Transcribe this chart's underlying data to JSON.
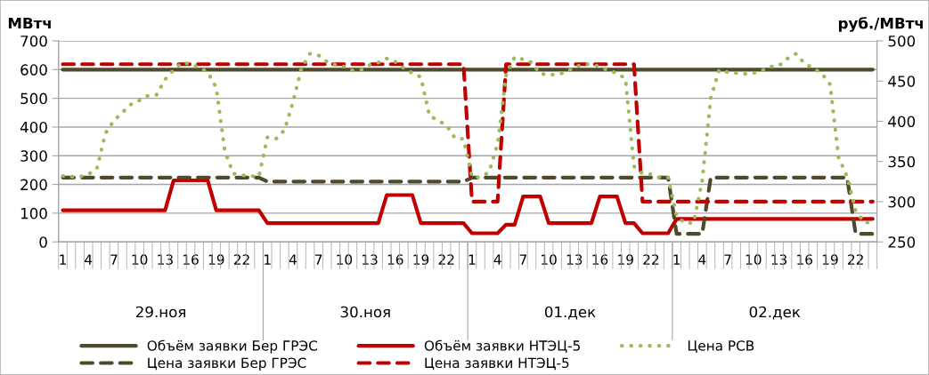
{
  "chart_data": {
    "type": "line",
    "ylabel": "МВтч",
    "y2label": "руб./МВтч",
    "categories": [
      "1",
      null,
      null,
      "4",
      null,
      null,
      "7",
      null,
      null,
      "10",
      null,
      null,
      "13",
      null,
      null,
      "16",
      null,
      null,
      "19",
      null,
      null,
      "22",
      null,
      null,
      "1",
      null,
      null,
      "4",
      null,
      null,
      "7",
      null,
      null,
      "10",
      null,
      null,
      "13",
      null,
      null,
      "16",
      null,
      null,
      "19",
      null,
      null,
      "22",
      null,
      null,
      "1",
      null,
      null,
      "4",
      null,
      null,
      "7",
      null,
      null,
      "10",
      null,
      null,
      "13",
      null,
      null,
      "16",
      null,
      null,
      "19",
      null,
      null,
      "22",
      null,
      null,
      "1",
      null,
      null,
      "4",
      null,
      null,
      "7",
      null,
      null,
      "10",
      null,
      null,
      "13",
      null,
      null,
      "16",
      null,
      null,
      "19",
      null,
      null,
      "22",
      null,
      null
    ],
    "annotations": [
      "29.ноя",
      "30.ноя",
      "01.дек",
      "02.дек"
    ],
    "ylim": [
      0,
      700
    ],
    "yticks": [
      0,
      100,
      200,
      300,
      400,
      500,
      600,
      700
    ],
    "y2lim": [
      250,
      500
    ],
    "y2ticks": [
      250,
      300,
      350,
      400,
      450,
      500
    ],
    "grid": "y",
    "legend": "bottom",
    "marker": "none",
    "series": [
      {
        "name": "Объём заявки Бер ГРЭС",
        "color": "#4f4a2c",
        "line_style": "solid",
        "values": [
          600,
          600,
          600,
          600,
          600,
          600,
          600,
          600,
          600,
          600,
          600,
          600,
          600,
          600,
          600,
          600,
          600,
          600,
          600,
          600,
          600,
          600,
          600,
          600,
          600,
          600,
          600,
          600,
          600,
          600,
          600,
          600,
          600,
          600,
          600,
          600,
          600,
          600,
          600,
          600,
          600,
          600,
          600,
          600,
          600,
          600,
          600,
          600,
          600,
          600,
          600,
          600,
          600,
          600,
          600,
          600,
          600,
          600,
          600,
          600,
          600,
          600,
          600,
          600,
          600,
          600,
          600,
          600,
          600,
          600,
          600,
          600,
          600,
          600,
          600,
          600,
          600,
          600,
          600,
          600,
          600,
          600,
          600,
          600,
          600,
          600,
          600,
          600,
          600,
          600,
          600,
          600,
          600,
          600,
          600,
          600
        ]
      },
      {
        "name": "Цена заявки Бер ГРЭС",
        "color": "#4f4a2c",
        "line_style": "dashed",
        "axis": "y2",
        "values": [
          330,
          330,
          330,
          330,
          330,
          330,
          330,
          330,
          330,
          330,
          330,
          330,
          330,
          330,
          330,
          330,
          330,
          330,
          330,
          330,
          330,
          330,
          330,
          330,
          325,
          325,
          325,
          325,
          325,
          325,
          325,
          325,
          325,
          325,
          325,
          325,
          325,
          325,
          325,
          325,
          325,
          325,
          325,
          325,
          325,
          325,
          325,
          325,
          330,
          330,
          330,
          330,
          330,
          330,
          330,
          330,
          330,
          330,
          330,
          330,
          330,
          330,
          330,
          330,
          330,
          330,
          330,
          330,
          330,
          330,
          330,
          330,
          260,
          260,
          260,
          260,
          330,
          330,
          330,
          330,
          330,
          330,
          330,
          330,
          330,
          330,
          330,
          330,
          330,
          330,
          330,
          330,
          330,
          260,
          260,
          260
        ]
      },
      {
        "name": "Объём заявки НТЭЦ-5",
        "color": "#c00000",
        "line_style": "solid",
        "values": [
          110,
          110,
          110,
          110,
          110,
          110,
          110,
          110,
          110,
          110,
          110,
          110,
          110,
          214,
          214,
          214,
          214,
          214,
          110,
          110,
          110,
          110,
          110,
          110,
          65,
          65,
          65,
          65,
          65,
          65,
          65,
          65,
          65,
          65,
          65,
          65,
          65,
          65,
          163,
          163,
          163,
          163,
          65,
          65,
          65,
          65,
          65,
          65,
          30,
          30,
          30,
          30,
          60,
          60,
          158,
          158,
          158,
          65,
          65,
          65,
          65,
          65,
          65,
          158,
          158,
          158,
          65,
          65,
          30,
          30,
          30,
          30,
          80,
          80,
          80,
          80,
          80,
          80,
          80,
          80,
          80,
          80,
          80,
          80,
          80,
          80,
          80,
          80,
          80,
          80,
          80,
          80,
          80,
          80,
          80,
          80
        ]
      },
      {
        "name": "Цена заявки НТЭЦ-5",
        "color": "#c00000",
        "line_style": "dashed",
        "axis": "y2",
        "values": [
          471,
          471,
          471,
          471,
          471,
          471,
          471,
          471,
          471,
          471,
          471,
          471,
          471,
          471,
          471,
          471,
          471,
          471,
          471,
          471,
          471,
          471,
          471,
          471,
          471,
          471,
          471,
          471,
          471,
          471,
          471,
          471,
          471,
          471,
          471,
          471,
          471,
          471,
          471,
          471,
          471,
          471,
          471,
          471,
          471,
          471,
          471,
          471,
          300,
          300,
          300,
          300,
          471,
          471,
          471,
          471,
          471,
          471,
          471,
          471,
          471,
          471,
          471,
          471,
          471,
          471,
          471,
          471,
          300,
          300,
          300,
          300,
          300,
          300,
          300,
          300,
          300,
          300,
          300,
          300,
          300,
          300,
          300,
          300,
          300,
          300,
          300,
          300,
          300,
          300,
          300,
          300,
          300,
          300,
          300,
          300
        ]
      },
      {
        "name": "Цена РСВ",
        "color": "#9bbb59",
        "line_style": "dotted",
        "axis": "y2",
        "values": [
          332,
          331,
          331,
          334,
          341,
          385,
          401,
          411,
          421,
          426,
          432,
          433,
          452,
          464,
          473,
          471,
          467,
          461,
          442,
          363,
          335,
          333,
          332,
          331,
          380,
          378,
          389,
          424,
          466,
          484,
          482,
          474,
          470,
          468,
          463,
          464,
          470,
          473,
          478,
          474,
          466,
          460,
          455,
          407,
          401,
          395,
          379,
          378,
          331,
          330,
          337,
          372,
          457,
          480,
          477,
          473,
          459,
          458,
          458,
          461,
          467,
          471,
          471,
          468,
          463,
          460,
          453,
          344,
          335,
          334,
          330,
          330,
          282,
          273,
          274,
          326,
          429,
          464,
          461,
          460,
          459,
          460,
          463,
          468,
          469,
          478,
          484,
          472,
          466,
          460,
          446,
          355,
          331,
          289,
          274,
          274
        ]
      }
    ]
  }
}
